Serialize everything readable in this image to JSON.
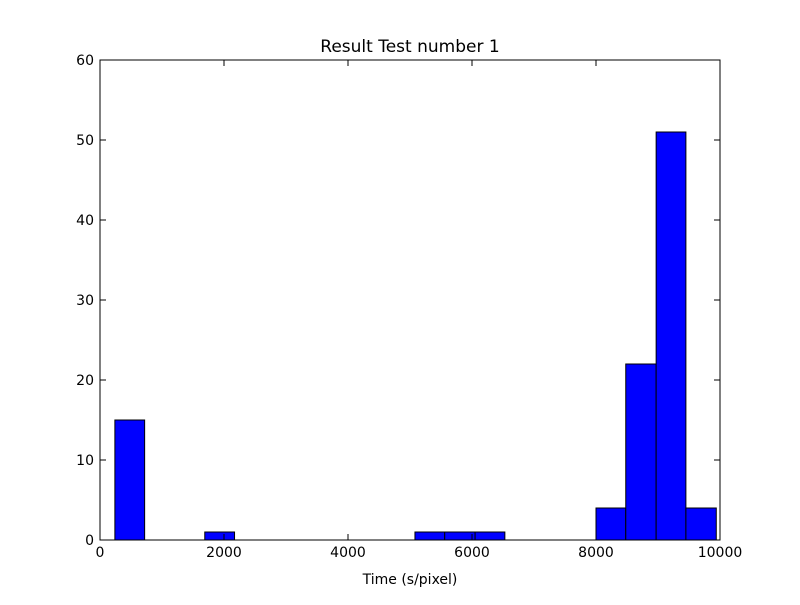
{
  "chart_data": {
    "type": "bar",
    "title": "Result Test number 1",
    "xlabel": "Time (s/pixel)",
    "ylabel": "",
    "xlim": [
      0,
      10000
    ],
    "ylim": [
      0,
      60
    ],
    "x_ticks": [
      0,
      2000,
      4000,
      6000,
      8000,
      10000
    ],
    "y_ticks": [
      0,
      10,
      20,
      30,
      40,
      50,
      60
    ],
    "grid": false,
    "bar_color": "#0000ff",
    "edge_color": "#000000",
    "bins": [
      {
        "start": 240,
        "end": 720,
        "value": 15
      },
      {
        "start": 1690,
        "end": 2170,
        "value": 1
      },
      {
        "start": 5080,
        "end": 5560,
        "value": 1
      },
      {
        "start": 5560,
        "end": 6050,
        "value": 1
      },
      {
        "start": 6050,
        "end": 6530,
        "value": 1
      },
      {
        "start": 8000,
        "end": 8480,
        "value": 4
      },
      {
        "start": 8480,
        "end": 8970,
        "value": 22
      },
      {
        "start": 8970,
        "end": 9450,
        "value": 51
      },
      {
        "start": 9450,
        "end": 9940,
        "value": 4
      }
    ]
  }
}
